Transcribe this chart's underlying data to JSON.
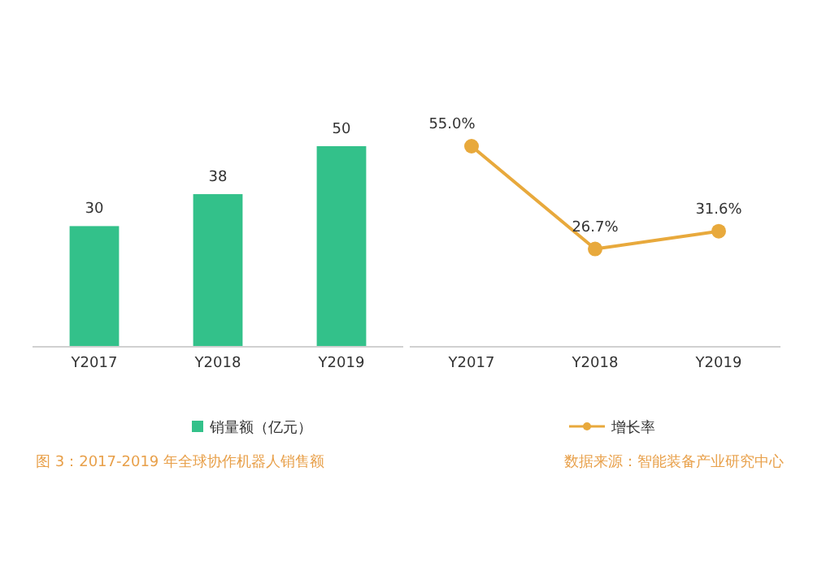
{
  "chart_data": [
    {
      "type": "bar",
      "categories": [
        "Y2017",
        "Y2018",
        "Y2019"
      ],
      "series": [
        {
          "name": "销量额（亿元）",
          "color": "#33c18a",
          "values": [
            30,
            38,
            50
          ]
        }
      ],
      "data_labels": true,
      "legend": "bottom",
      "annotations": [
        "图 3：2017-2019 年全球协作机器人销售额"
      ]
    },
    {
      "type": "line",
      "categories": [
        "Y2017",
        "Y2018",
        "Y2019"
      ],
      "series": [
        {
          "name": "增长率",
          "color": "#e8a93c",
          "values": [
            55.0,
            26.7,
            31.6
          ],
          "value_labels": [
            "55.0%",
            "26.7%",
            "31.6%"
          ]
        }
      ],
      "marker": "circle",
      "legend": "bottom",
      "annotations": [
        "数据来源：智能装备产业研究中心"
      ]
    }
  ]
}
